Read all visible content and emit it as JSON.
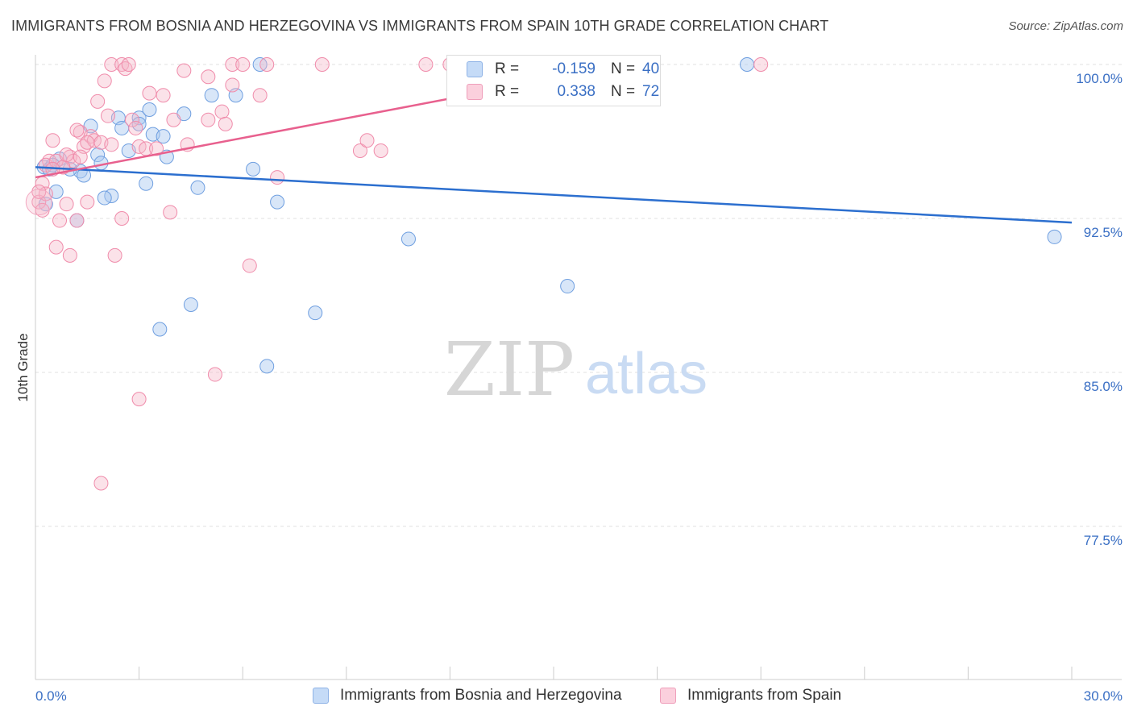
{
  "title": "IMMIGRANTS FROM BOSNIA AND HERZEGOVINA VS IMMIGRANTS FROM SPAIN 10TH GRADE CORRELATION CHART",
  "source": "Source: ZipAtlas.com",
  "watermark": {
    "zip": "ZIP",
    "atlas": "atlas"
  },
  "stats": [
    {
      "r_label": "R =",
      "r_value": "-0.159",
      "n_label": "N =",
      "n_value": "40",
      "color": "#a8c8f0"
    },
    {
      "r_label": "R =",
      "r_value": "0.338",
      "n_label": "N =",
      "n_value": "72",
      "color": "#f5b7c9"
    }
  ],
  "legend": [
    {
      "label": "Immigrants from Bosnia and Herzegovina",
      "color": "#a8c8f0"
    },
    {
      "label": "Immigrants from Spain",
      "color": "#f5b7c9"
    }
  ],
  "chart_data": {
    "type": "scatter",
    "title": "IMMIGRANTS FROM BOSNIA AND HERZEGOVINA VS IMMIGRANTS FROM SPAIN 10TH GRADE CORRELATION CHART",
    "xlabel": "",
    "ylabel": "10th Grade",
    "xlim": [
      0,
      30
    ],
    "ylim": [
      70,
      100.3
    ],
    "x_tick_labels": [
      "0.0%",
      "30.0%"
    ],
    "y_tick_labels": [
      "100.0%",
      "92.5%",
      "85.0%",
      "77.5%"
    ],
    "y_ticks": [
      100,
      92.5,
      85,
      77.5
    ],
    "grid": true,
    "legend_position": "bottom",
    "series": [
      {
        "name": "Immigrants from Bosnia and Herzegovina",
        "color": "#6f9fe0",
        "trend": {
          "x": [
            0,
            30
          ],
          "y": [
            95.0,
            92.3
          ],
          "color": "#2c6fcf"
        },
        "points": [
          [
            0.25,
            95.0
          ],
          [
            0.4,
            94.9
          ],
          [
            0.7,
            95.4
          ],
          [
            0.6,
            93.8
          ],
          [
            1.3,
            94.8
          ],
          [
            1.4,
            94.6
          ],
          [
            1.6,
            97.0
          ],
          [
            1.8,
            95.6
          ],
          [
            1.9,
            95.2
          ],
          [
            2.2,
            93.6
          ],
          [
            2.4,
            97.4
          ],
          [
            2.5,
            96.9
          ],
          [
            2.7,
            95.8
          ],
          [
            3.0,
            97.4
          ],
          [
            3.0,
            97.1
          ],
          [
            3.2,
            94.2
          ],
          [
            3.3,
            97.8
          ],
          [
            3.4,
            96.6
          ],
          [
            3.7,
            96.5
          ],
          [
            3.8,
            95.5
          ],
          [
            3.6,
            87.1
          ],
          [
            4.3,
            97.6
          ],
          [
            4.5,
            88.3
          ],
          [
            4.7,
            94.0
          ],
          [
            5.1,
            98.5
          ],
          [
            5.8,
            98.5
          ],
          [
            6.3,
            94.9
          ],
          [
            6.5,
            100.0
          ],
          [
            6.7,
            85.3
          ],
          [
            7.0,
            93.3
          ],
          [
            8.1,
            87.9
          ],
          [
            10.8,
            91.5
          ],
          [
            15.4,
            89.2
          ],
          [
            20.6,
            100.0
          ],
          [
            29.5,
            91.6
          ],
          [
            0.5,
            95.1
          ],
          [
            0.3,
            93.2
          ],
          [
            1.0,
            94.9
          ],
          [
            2.0,
            93.5
          ],
          [
            1.2,
            92.4
          ]
        ]
      },
      {
        "name": "Immigrants from Spain",
        "color": "#f08cab",
        "trend": {
          "x": [
            0,
            17.5
          ],
          "y": [
            94.5,
            100.1
          ],
          "color": "#e8608e"
        },
        "points": [
          [
            0.1,
            93.3
          ],
          [
            0.2,
            94.2
          ],
          [
            0.3,
            93.7
          ],
          [
            0.4,
            95.3
          ],
          [
            0.5,
            96.3
          ],
          [
            0.6,
            91.1
          ],
          [
            0.7,
            92.4
          ],
          [
            0.8,
            95.0
          ],
          [
            0.9,
            93.2
          ],
          [
            1.0,
            90.7
          ],
          [
            1.0,
            95.5
          ],
          [
            1.1,
            95.3
          ],
          [
            1.2,
            92.4
          ],
          [
            1.3,
            96.7
          ],
          [
            1.4,
            96.0
          ],
          [
            1.5,
            93.3
          ],
          [
            1.6,
            96.5
          ],
          [
            1.7,
            96.3
          ],
          [
            1.8,
            98.2
          ],
          [
            1.9,
            96.2
          ],
          [
            1.9,
            79.6
          ],
          [
            2.0,
            99.2
          ],
          [
            2.1,
            97.5
          ],
          [
            2.2,
            96.1
          ],
          [
            2.2,
            100.0
          ],
          [
            2.3,
            90.7
          ],
          [
            2.5,
            100.0
          ],
          [
            2.5,
            92.5
          ],
          [
            2.6,
            99.8
          ],
          [
            2.7,
            100.0
          ],
          [
            2.8,
            97.3
          ],
          [
            2.9,
            96.9
          ],
          [
            3.0,
            96.0
          ],
          [
            3.0,
            83.7
          ],
          [
            3.2,
            95.9
          ],
          [
            3.3,
            98.6
          ],
          [
            3.5,
            95.9
          ],
          [
            3.7,
            98.5
          ],
          [
            3.9,
            92.8
          ],
          [
            4.0,
            97.3
          ],
          [
            4.3,
            99.7
          ],
          [
            4.4,
            96.1
          ],
          [
            5.0,
            97.3
          ],
          [
            5.0,
            99.4
          ],
          [
            5.2,
            84.9
          ],
          [
            5.4,
            97.7
          ],
          [
            5.5,
            97.1
          ],
          [
            5.7,
            100.0
          ],
          [
            5.7,
            99.0
          ],
          [
            6.0,
            100.0
          ],
          [
            6.2,
            90.2
          ],
          [
            6.5,
            98.5
          ],
          [
            6.7,
            100.0
          ],
          [
            7.0,
            94.5
          ],
          [
            8.3,
            100.0
          ],
          [
            9.4,
            95.8
          ],
          [
            9.6,
            96.3
          ],
          [
            10.0,
            95.8
          ],
          [
            11.3,
            100.0
          ],
          [
            12.0,
            100.0
          ],
          [
            16.2,
            100.0
          ],
          [
            21.0,
            100.0
          ],
          [
            0.3,
            95.1
          ],
          [
            0.6,
            95.3
          ],
          [
            0.8,
            95.0
          ],
          [
            1.2,
            96.8
          ],
          [
            1.5,
            96.2
          ],
          [
            0.5,
            94.9
          ],
          [
            0.9,
            95.6
          ],
          [
            1.3,
            95.5
          ],
          [
            0.2,
            92.9
          ],
          [
            0.1,
            93.8
          ]
        ]
      }
    ]
  }
}
